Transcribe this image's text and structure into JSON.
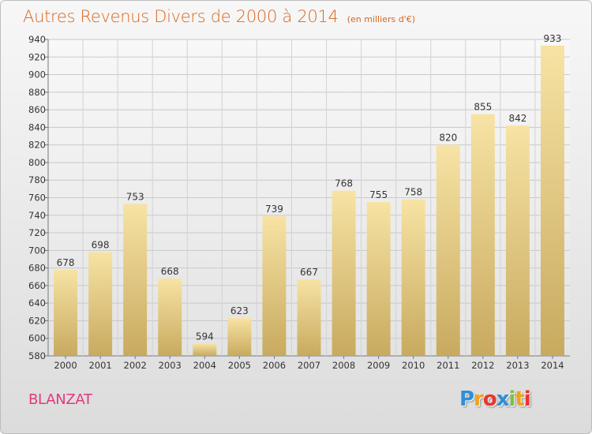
{
  "chart_data": {
    "type": "bar",
    "title": "Autres Revenus Divers de 2000 à 2014",
    "unit_label": "(en milliers d'€)",
    "categories": [
      "2000",
      "2001",
      "2002",
      "2003",
      "2004",
      "2005",
      "2006",
      "2007",
      "2008",
      "2009",
      "2010",
      "2011",
      "2012",
      "2013",
      "2014"
    ],
    "values": [
      678,
      698,
      753,
      668,
      594,
      623,
      739,
      667,
      768,
      755,
      758,
      820,
      855,
      842,
      933
    ],
    "ylim": [
      580,
      940
    ],
    "yticks": [
      580,
      600,
      620,
      640,
      660,
      680,
      700,
      720,
      740,
      760,
      780,
      800,
      820,
      840,
      860,
      880,
      900,
      920,
      940
    ],
    "grid": true,
    "data_labels": true,
    "colors": {
      "bar_top": "#f7e3a4",
      "bar_bottom": "#c8aa5f",
      "title": "#d9661f",
      "town": "#e03a7c"
    }
  },
  "footer": {
    "town": "BLANZAT",
    "logo_letters": [
      {
        "ch": "P",
        "color": "#2f8fd8"
      },
      {
        "ch": "r",
        "color": "#f0a21a"
      },
      {
        "ch": "o",
        "color": "#e8352d"
      },
      {
        "ch": "x",
        "color": "#2f8fd8"
      },
      {
        "ch": "i",
        "color": "#7cc242"
      },
      {
        "ch": "t",
        "color": "#f0a21a"
      },
      {
        "ch": "i",
        "color": "#e8352d"
      }
    ]
  }
}
